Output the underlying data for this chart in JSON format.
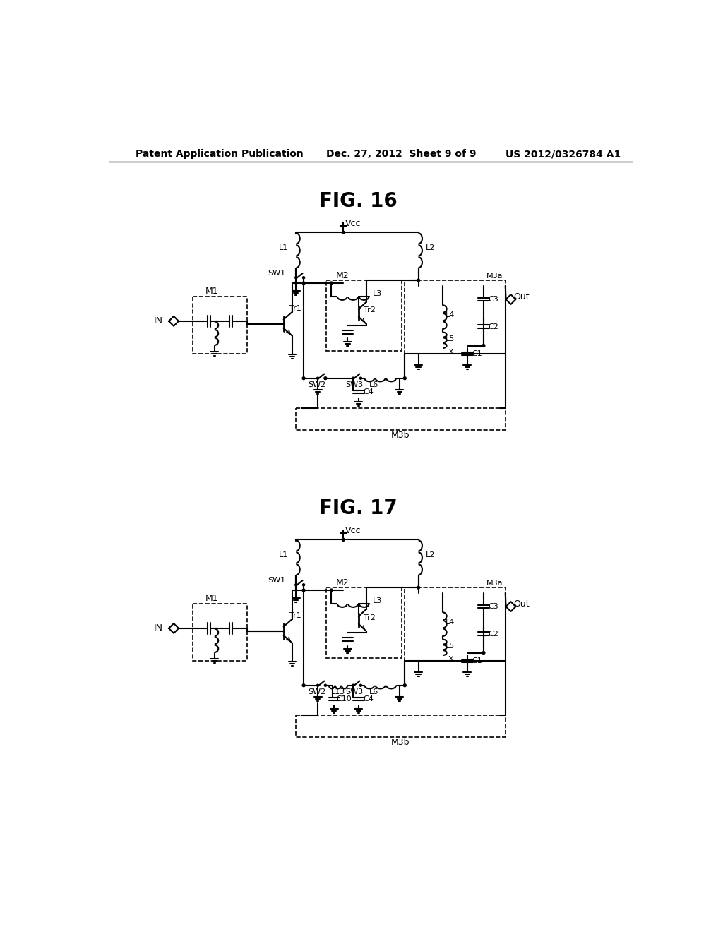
{
  "background_color": "#ffffff",
  "header_left": "Patent Application Publication",
  "header_center": "Dec. 27, 2012  Sheet 9 of 9",
  "header_right": "US 2012/0326784 A1",
  "fig16_title": "FIG. 16",
  "fig17_title": "FIG. 17"
}
